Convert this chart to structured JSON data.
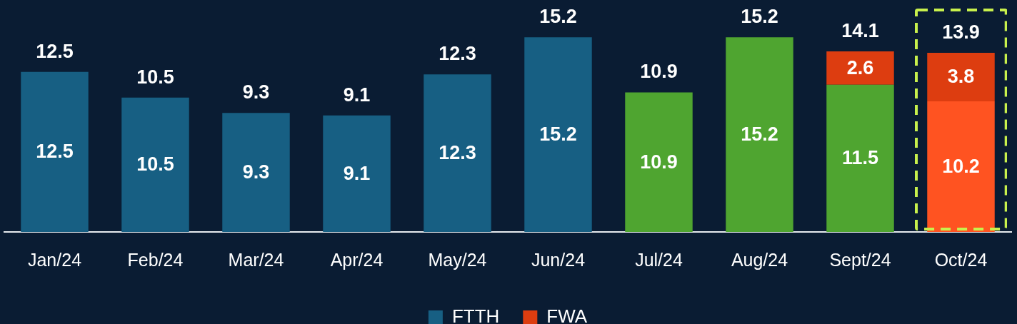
{
  "chart_data": {
    "type": "bar",
    "categories": [
      "Jan/24",
      "Feb/24",
      "Mar/24",
      "Apr/24",
      "May/24",
      "Jun/24",
      "Jul/24",
      "Aug/24",
      "Sept/24",
      "Oct/24"
    ],
    "stacked": true,
    "series": [
      {
        "name": "FTTH",
        "color": "#175f83",
        "colors": [
          "#175f83",
          "#175f83",
          "#175f83",
          "#175f83",
          "#175f83",
          "#175f83",
          "#4fa530",
          "#4fa530",
          "#4fa530",
          "#ff5321"
        ],
        "values": [
          12.5,
          10.5,
          9.3,
          9.1,
          12.3,
          15.2,
          10.9,
          15.2,
          11.5,
          10.2
        ]
      },
      {
        "name": "FWA",
        "color": "#dd3d10",
        "values": [
          null,
          null,
          null,
          null,
          null,
          null,
          null,
          null,
          2.6,
          3.8
        ]
      }
    ],
    "totals": [
      "12.5",
      "10.5",
      "9.3",
      "9.1",
      "12.3",
      "15.2",
      "10.9",
      "15.2",
      "14.1",
      "13.9"
    ],
    "data_labels": true,
    "legend": "bottom",
    "grid": false,
    "tick_labels": "x"
  }
}
